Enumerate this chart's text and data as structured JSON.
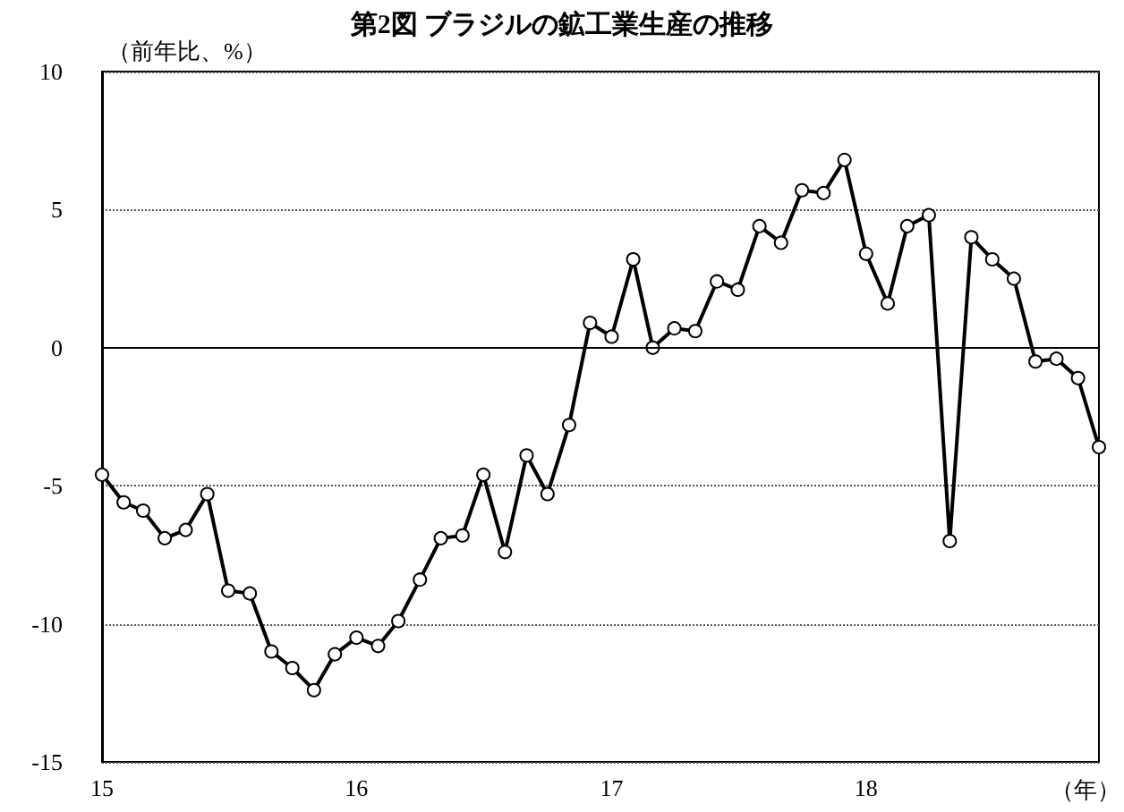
{
  "chart_data": {
    "type": "line",
    "title": "第2図 ブラジルの鉱工業生産の推移",
    "ylabel": "（前年比、%）",
    "xlabel": "（年）",
    "x": [
      "2015-01",
      "2015-02",
      "2015-03",
      "2015-04",
      "2015-05",
      "2015-06",
      "2015-07",
      "2015-08",
      "2015-09",
      "2015-10",
      "2015-11",
      "2015-12",
      "2016-01",
      "2016-02",
      "2016-03",
      "2016-04",
      "2016-05",
      "2016-06",
      "2016-07",
      "2016-08",
      "2016-09",
      "2016-10",
      "2016-11",
      "2016-12",
      "2017-01",
      "2017-02",
      "2017-03",
      "2017-04",
      "2017-05",
      "2017-06",
      "2017-07",
      "2017-08",
      "2017-09",
      "2017-10",
      "2017-11",
      "2017-12",
      "2018-01",
      "2018-02",
      "2018-03",
      "2018-04",
      "2018-05",
      "2018-06",
      "2018-07",
      "2018-08",
      "2018-09",
      "2018-10",
      "2018-11",
      "2018-12"
    ],
    "series": [
      {
        "color": "#000000",
        "values": [
          -4.6,
          -5.6,
          -5.9,
          -6.9,
          -6.6,
          -5.3,
          -8.8,
          -8.9,
          -11.0,
          -11.6,
          -12.4,
          -11.1,
          -10.5,
          -10.8,
          -9.9,
          -8.4,
          -6.9,
          -6.8,
          -4.6,
          -7.4,
          -3.9,
          -5.3,
          -2.8,
          0.9,
          0.4,
          3.2,
          0.0,
          0.7,
          0.6,
          2.4,
          2.1,
          4.4,
          3.8,
          5.7,
          5.6,
          6.8,
          3.4,
          1.6,
          4.4,
          4.8,
          -7.0,
          4.0,
          3.2,
          2.5,
          -0.5,
          -0.4,
          -1.1,
          -3.6
        ]
      }
    ],
    "xlim": [
      "2015-01",
      "2018-12"
    ],
    "xticks": [
      {
        "value": "2015-01",
        "label": "15"
      },
      {
        "value": "2016-01",
        "label": "16"
      },
      {
        "value": "2017-01",
        "label": "17"
      },
      {
        "value": "2018-01",
        "label": "18"
      }
    ],
    "ylim": [
      -15,
      10
    ],
    "yticks": [
      -15,
      -10,
      -5,
      0,
      5,
      10
    ],
    "ref_lines": [
      {
        "axis": "y",
        "value": 0,
        "color": "#000000",
        "line_style": "solid"
      }
    ],
    "grid": "y",
    "marker": "circle",
    "line_style": "solid"
  }
}
